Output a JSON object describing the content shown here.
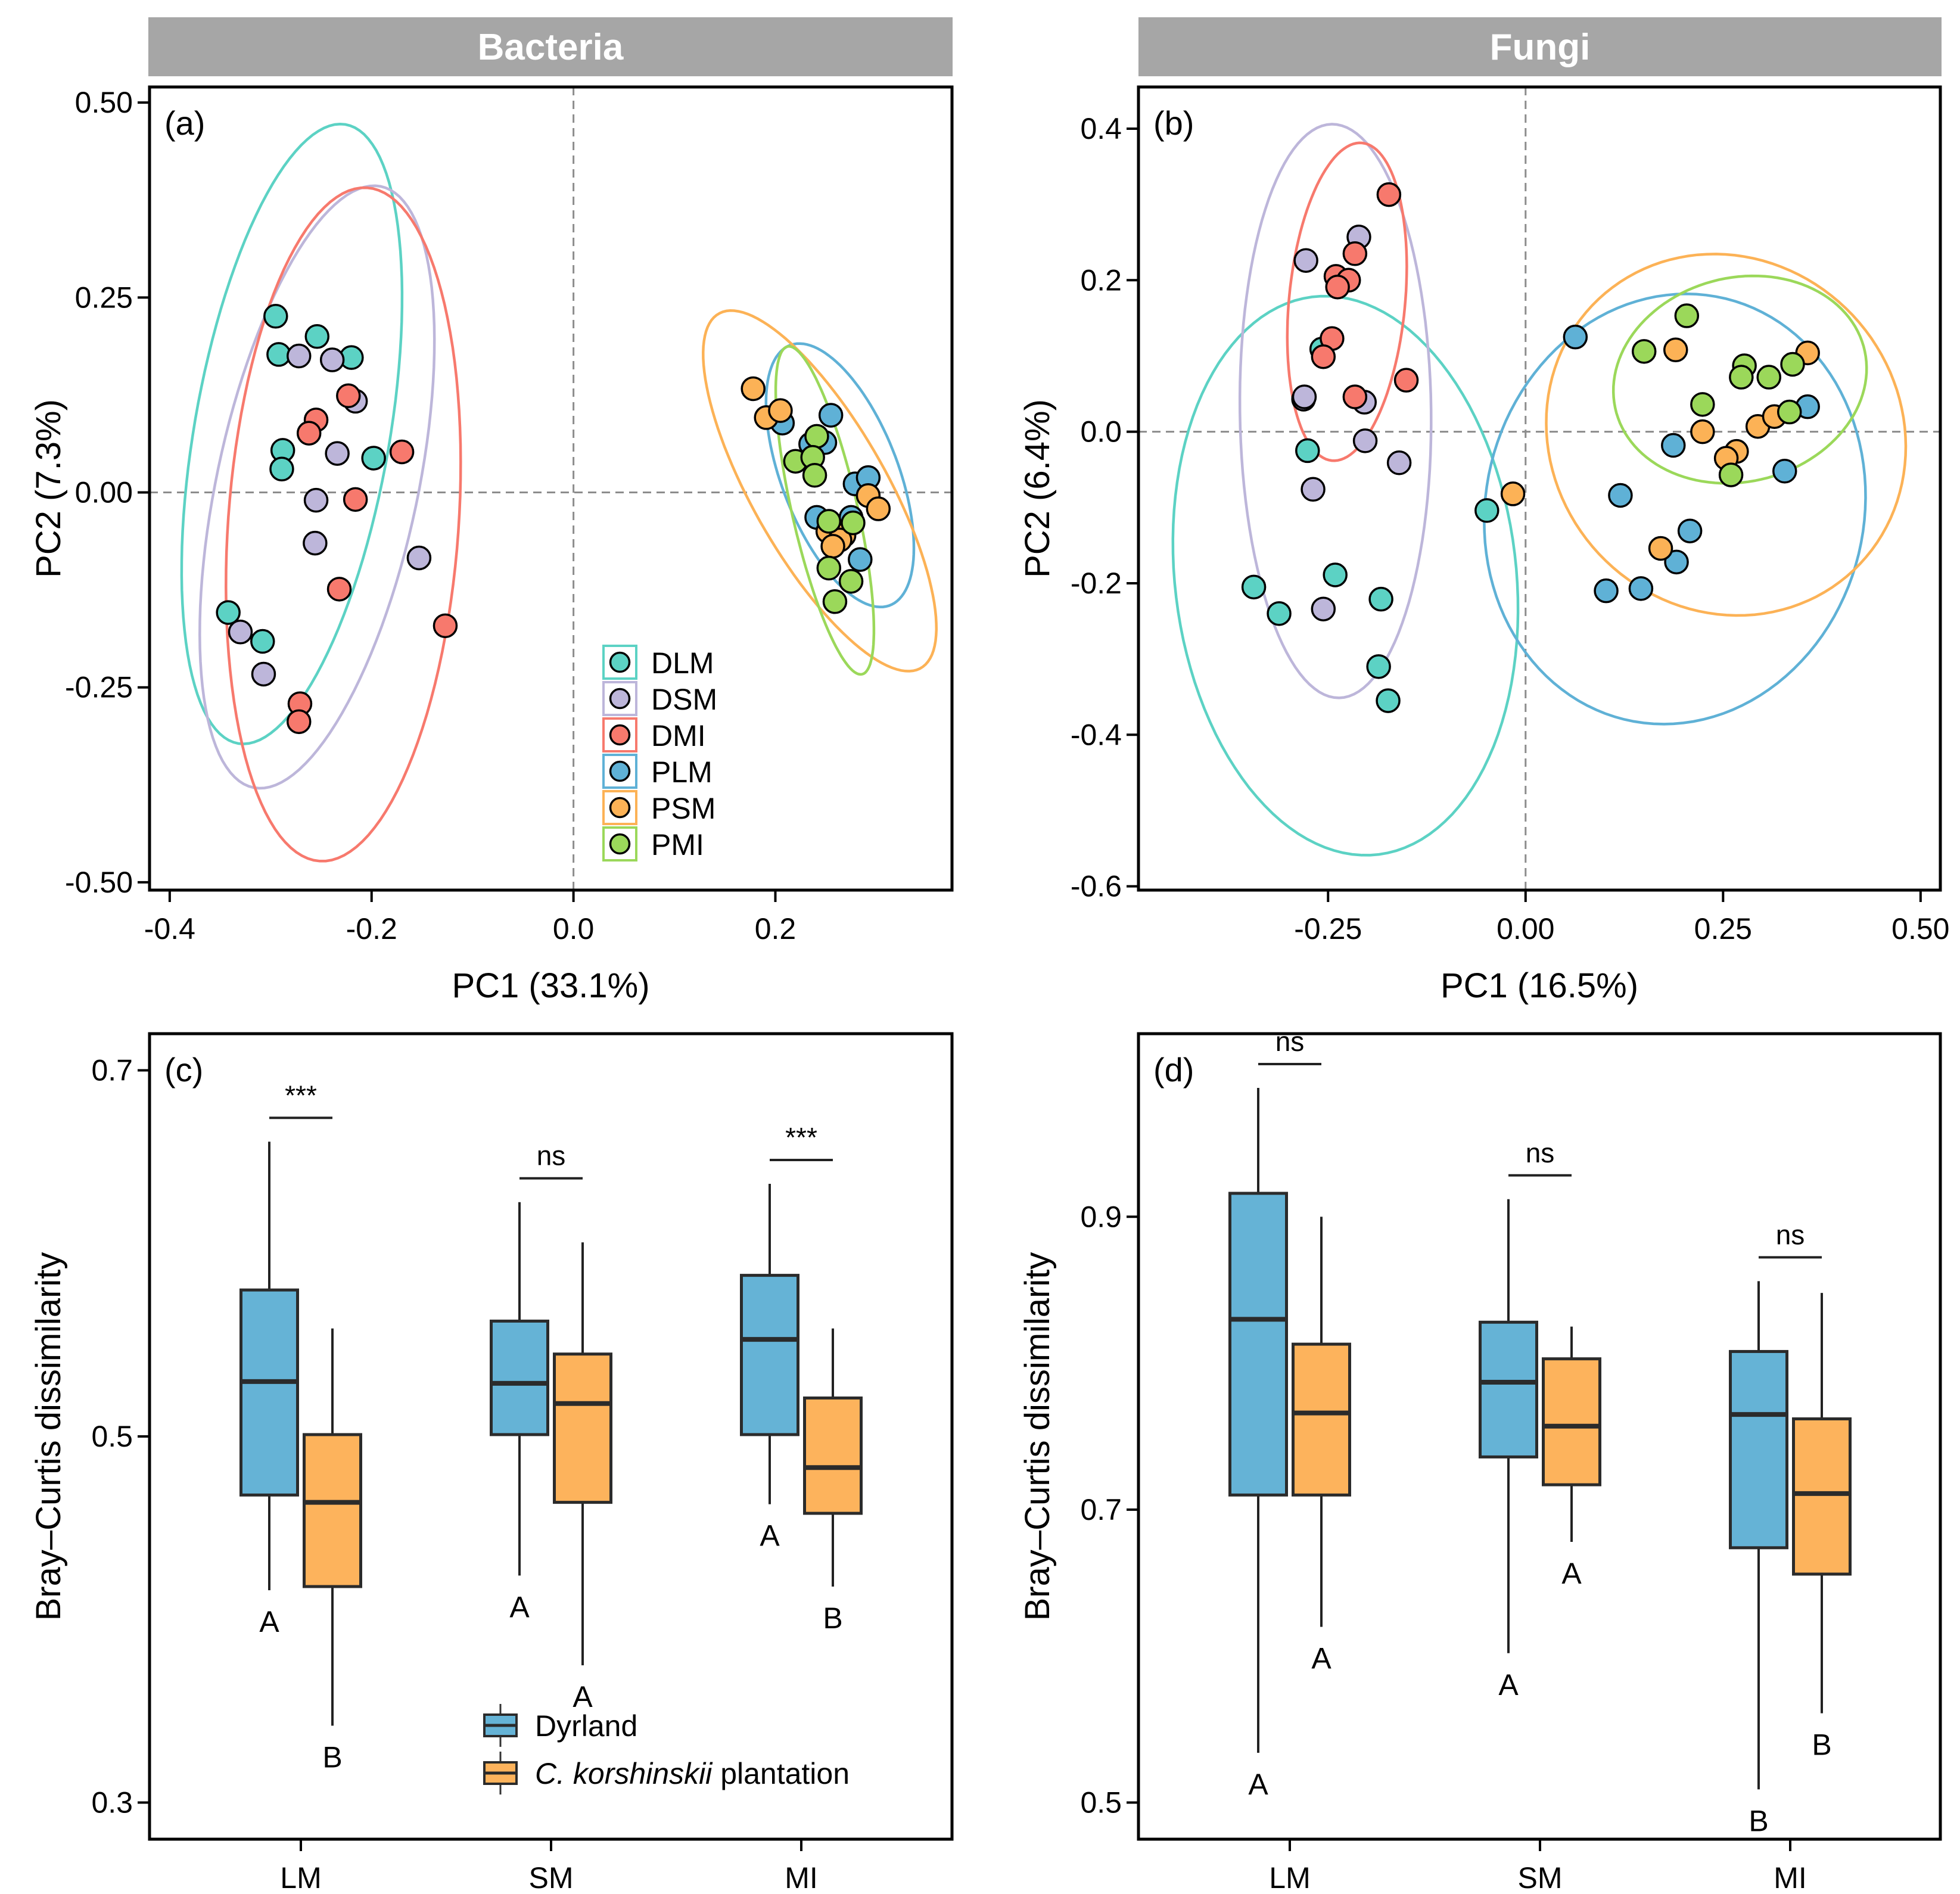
{
  "headers": {
    "left": "Bacteria",
    "right": "Fungi"
  },
  "colors": {
    "DLM": "#5cd2c4",
    "DSM": "#bdb6da",
    "DMI": "#f7796d",
    "PLM": "#5fb1d6",
    "PSM": "#fcb256",
    "PMI": "#9bd85a",
    "dryland_box": "#65b3d6",
    "plantation_box": "#fdb35c",
    "header_bg": "#a6a6a6"
  },
  "chart_data": [
    {
      "id": "a",
      "type": "scatter",
      "panel_label": "(a)",
      "header": "Bacteria",
      "xlabel": "PC1 (33.1%)",
      "ylabel": "PC2 (7.3%)",
      "xlim": [
        -0.42,
        0.375
      ],
      "ylim": [
        -0.51,
        0.52
      ],
      "xticks": [
        -0.4,
        -0.2,
        0.0,
        0.2
      ],
      "xtick_labels": [
        "-0.4",
        "-0.2",
        "0.0",
        "0.2"
      ],
      "yticks": [
        -0.5,
        -0.25,
        0.0,
        0.25,
        0.5
      ],
      "ytick_labels": [
        "-0.50",
        "-0.25",
        "0.00",
        "0.25",
        "0.50"
      ],
      "reference_lines": {
        "x": 0,
        "y": 0
      },
      "legend": {
        "placement": "bottom-right-center",
        "entries": [
          "DLM",
          "DSM",
          "DMI",
          "PLM",
          "PSM",
          "PMI"
        ]
      },
      "series": [
        {
          "name": "DLM",
          "points": [
            [
              -0.295,
              0.226
            ],
            [
              -0.292,
              0.177
            ],
            [
              -0.254,
              0.2
            ],
            [
              -0.22,
              0.173
            ],
            [
              -0.288,
              0.054
            ],
            [
              -0.289,
              0.03
            ],
            [
              -0.198,
              0.044
            ],
            [
              -0.342,
              -0.154
            ],
            [
              -0.308,
              -0.191
            ]
          ],
          "ellipse": {
            "center": [
              -0.279,
              0.075
            ],
            "u": [
              0.0528,
              0.397
            ],
            "v": [
              0.0956,
              -0.0193
            ]
          }
        },
        {
          "name": "DSM",
          "points": [
            [
              -0.272,
              0.175
            ],
            [
              -0.239,
              0.17
            ],
            [
              -0.216,
              0.117
            ],
            [
              -0.234,
              0.05
            ],
            [
              -0.255,
              -0.01
            ],
            [
              -0.256,
              -0.065
            ],
            [
              -0.153,
              -0.084
            ],
            [
              -0.33,
              -0.179
            ],
            [
              -0.307,
              -0.233
            ]
          ],
          "ellipse": {
            "center": [
              -0.254,
              0.007
            ],
            "u": [
              0.0627,
              0.3856
            ],
            "v": [
              0.0979,
              -0.0242
            ]
          }
        },
        {
          "name": "DMI",
          "points": [
            [
              -0.223,
              0.124
            ],
            [
              -0.255,
              0.093
            ],
            [
              -0.262,
              0.076
            ],
            [
              -0.17,
              0.052
            ],
            [
              -0.216,
              -0.009
            ],
            [
              -0.232,
              -0.124
            ],
            [
              -0.127,
              -0.171
            ],
            [
              -0.271,
              -0.271
            ],
            [
              -0.272,
              -0.294
            ]
          ],
          "ellipse": {
            "center": [
              -0.228,
              -0.041
            ],
            "u": [
              0.0234,
              0.4318
            ],
            "v": [
              0.1139,
              -0.0094
            ]
          }
        },
        {
          "name": "PLM",
          "points": [
            [
              0.207,
              0.089
            ],
            [
              0.255,
              0.099
            ],
            [
              0.235,
              0.062
            ],
            [
              0.249,
              0.064
            ],
            [
              0.279,
              0.011
            ],
            [
              0.292,
              0.019
            ],
            [
              0.241,
              -0.032
            ],
            [
              0.275,
              -0.032
            ],
            [
              0.284,
              -0.086
            ]
          ],
          "ellipse": {
            "center": [
              0.264,
              0.022
            ],
            "u": [
              -0.0486,
              0.1672
            ],
            "v": [
              0.0548,
              0.0242
            ]
          }
        },
        {
          "name": "PSM",
          "points": [
            [
              0.178,
              0.133
            ],
            [
              0.191,
              0.096
            ],
            [
              0.205,
              0.105
            ],
            [
              0.292,
              -0.004
            ],
            [
              0.302,
              -0.021
            ],
            [
              0.252,
              -0.05
            ],
            [
              0.268,
              -0.055
            ],
            [
              0.264,
              -0.061
            ],
            [
              0.257,
              -0.069
            ]
          ],
          "ellipse": {
            "center": [
              0.244,
              0.002
            ],
            "u": [
              -0.0992,
              0.2279
            ],
            "v": [
              0.0592,
              0.0391
            ]
          }
        },
        {
          "name": "PMI",
          "points": [
            [
              0.241,
              0.072
            ],
            [
              0.22,
              0.04
            ],
            [
              0.237,
              0.045
            ],
            [
              0.239,
              0.022
            ],
            [
              0.253,
              -0.037
            ],
            [
              0.277,
              -0.039
            ],
            [
              0.253,
              -0.097
            ],
            [
              0.275,
              -0.114
            ],
            [
              0.259,
              -0.14
            ]
          ],
          "ellipse": {
            "center": [
              0.249,
              -0.023
            ],
            "u": [
              -0.0368,
              0.2102
            ],
            "v": [
              0.0318,
              0.0084
            ]
          }
        }
      ]
    },
    {
      "id": "b",
      "type": "scatter",
      "panel_label": "(b)",
      "header": "Fungi",
      "xlabel": "PC1 (16.5%)",
      "ylabel": "PC2 (6.4%)",
      "xlim": [
        -0.49,
        0.525
      ],
      "ylim": [
        -0.605,
        0.455
      ],
      "xticks": [
        -0.25,
        0.0,
        0.25,
        0.5
      ],
      "xtick_labels": [
        "-0.25",
        "0.00",
        "0.25",
        "0.50"
      ],
      "yticks": [
        -0.6,
        -0.4,
        -0.2,
        0.0,
        0.2,
        0.4
      ],
      "ytick_labels": [
        "-0.6",
        "-0.4",
        "-0.2",
        "0.0",
        "0.2",
        "0.4"
      ],
      "reference_lines": {
        "x": 0,
        "y": 0
      },
      "series": [
        {
          "name": "DLM",
          "points": [
            [
              -0.258,
              0.109
            ],
            [
              -0.276,
              -0.025
            ],
            [
              -0.049,
              -0.104
            ],
            [
              -0.344,
              -0.205
            ],
            [
              -0.312,
              -0.24
            ],
            [
              -0.241,
              -0.189
            ],
            [
              -0.183,
              -0.221
            ],
            [
              -0.186,
              -0.31
            ],
            [
              -0.174,
              -0.355
            ]
          ],
          "ellipse": {
            "center": [
              -0.228,
              -0.19
            ],
            "u": [
              -0.0424,
              0.3679
            ],
            "v": [
              0.2143,
              0.0285
            ]
          }
        },
        {
          "name": "DSM",
          "points": [
            [
              -0.211,
              0.257
            ],
            [
              -0.278,
              0.226
            ],
            [
              -0.281,
              0.043
            ],
            [
              -0.28,
              0.046
            ],
            [
              -0.204,
              0.039
            ],
            [
              -0.203,
              -0.012
            ],
            [
              -0.16,
              -0.041
            ],
            [
              -0.269,
              -0.076
            ],
            [
              -0.256,
              -0.234
            ]
          ],
          "ellipse": {
            "center": [
              -0.2406,
              0.0273
            ],
            "u": [
              -0.0046,
              0.3786
            ],
            "v": [
              0.121,
              0.0017
            ]
          }
        },
        {
          "name": "DMI",
          "points": [
            [
              -0.173,
              0.313
            ],
            [
              -0.216,
              0.235
            ],
            [
              -0.24,
              0.205
            ],
            [
              -0.224,
              0.2
            ],
            [
              -0.238,
              0.191
            ],
            [
              -0.245,
              0.123
            ],
            [
              -0.256,
              0.099
            ],
            [
              -0.216,
              0.046
            ],
            [
              -0.151,
              0.068
            ]
          ],
          "ellipse": {
            "center": [
              -0.226,
              0.1715
            ],
            "u": [
              0.0193,
              0.2096
            ],
            "v": [
              0.0731,
              -0.0078
            ]
          }
        },
        {
          "name": "PLM",
          "points": [
            [
              0.063,
              0.125
            ],
            [
              0.187,
              -0.018
            ],
            [
              0.12,
              -0.084
            ],
            [
              0.208,
              -0.131
            ],
            [
              0.191,
              -0.172
            ],
            [
              0.102,
              -0.21
            ],
            [
              0.146,
              -0.207
            ],
            [
              0.357,
              0.033
            ],
            [
              0.328,
              -0.052
            ]
          ],
          "ellipse": {
            "center": [
              0.189,
              -0.102
            ],
            "u": [
              0.0763,
              0.2742
            ],
            "v": [
              0.229,
              -0.0736
            ]
          }
        },
        {
          "name": "PSM",
          "points": [
            [
              -0.016,
              -0.082
            ],
            [
              0.19,
              0.108
            ],
            [
              0.357,
              0.104
            ],
            [
              0.294,
              0.007
            ],
            [
              0.315,
              0.02
            ],
            [
              0.224,
              0.0
            ],
            [
              0.267,
              -0.026
            ],
            [
              0.254,
              -0.035
            ],
            [
              0.171,
              -0.154
            ]
          ],
          "ellipse": {
            "center": [
              0.2537,
              -0.004
            ],
            "u": [
              0.1234,
              0.1914
            ],
            "v": [
              0.1912,
              -0.1423
            ]
          }
        },
        {
          "name": "PMI",
          "points": [
            [
              0.204,
              0.153
            ],
            [
              0.15,
              0.106
            ],
            [
              0.277,
              0.087
            ],
            [
              0.273,
              0.072
            ],
            [
              0.308,
              0.072
            ],
            [
              0.338,
              0.089
            ],
            [
              0.224,
              0.036
            ],
            [
              0.334,
              0.026
            ],
            [
              0.26,
              -0.057
            ]
          ],
          "ellipse": {
            "center": [
              0.2714,
              0.0688
            ],
            "u": [
              0.158,
              0.0373
            ],
            "v": [
              0.0269,
              -0.1317
            ]
          }
        }
      ]
    },
    {
      "id": "c",
      "type": "box",
      "panel_label": "(c)",
      "ylabel": "Bray–Curtis dissimilarity",
      "categories": [
        "LM",
        "SM",
        "MI"
      ],
      "ylim": [
        0.28,
        0.72
      ],
      "yticks": [
        0.3,
        0.5,
        0.7
      ],
      "ytick_labels": [
        "0.3",
        "0.5",
        "0.7"
      ],
      "legend": {
        "placement": "bottom-center",
        "entries": [
          {
            "name": "Dyrland",
            "italic_part": "",
            "rest": "Dyrland"
          },
          {
            "name": "C. korshinskii plantation",
            "italic_part": "C. korshinskii",
            "rest": " plantation"
          }
        ]
      },
      "series": [
        {
          "name": "Dyrland",
          "boxes": [
            {
              "min": 0.416,
              "q1": 0.468,
              "median": 0.53,
              "q3": 0.58,
              "max": 0.661,
              "letter": "A"
            },
            {
              "min": 0.424,
              "q1": 0.501,
              "median": 0.529,
              "q3": 0.563,
              "max": 0.628,
              "letter": "A"
            },
            {
              "min": 0.463,
              "q1": 0.501,
              "median": 0.553,
              "q3": 0.588,
              "max": 0.638,
              "letter": "A"
            }
          ]
        },
        {
          "name": "C. korshinskii plantation",
          "boxes": [
            {
              "min": 0.342,
              "q1": 0.418,
              "median": 0.464,
              "q3": 0.501,
              "max": 0.559,
              "letter": "B"
            },
            {
              "min": 0.375,
              "q1": 0.464,
              "median": 0.518,
              "q3": 0.545,
              "max": 0.606,
              "letter": "A"
            },
            {
              "min": 0.418,
              "q1": 0.458,
              "median": 0.483,
              "q3": 0.521,
              "max": 0.559,
              "letter": "B"
            }
          ]
        }
      ],
      "significance": [
        "***",
        "ns",
        "***"
      ]
    },
    {
      "id": "d",
      "type": "box",
      "panel_label": "(d)",
      "ylabel": "Bray–Curtis dissimilarity",
      "categories": [
        "LM",
        "SM",
        "MI"
      ],
      "ylim": [
        0.475,
        1.025
      ],
      "yticks": [
        0.5,
        0.7,
        0.9
      ],
      "ytick_labels": [
        "0.5",
        "0.7",
        "0.9"
      ],
      "series": [
        {
          "name": "Dyrland",
          "boxes": [
            {
              "min": 0.534,
              "q1": 0.71,
              "median": 0.83,
              "q3": 0.916,
              "max": 0.988,
              "letter": "A"
            },
            {
              "min": 0.602,
              "q1": 0.736,
              "median": 0.787,
              "q3": 0.828,
              "max": 0.912,
              "letter": "A"
            },
            {
              "min": 0.509,
              "q1": 0.674,
              "median": 0.765,
              "q3": 0.808,
              "max": 0.856,
              "letter": "B"
            }
          ]
        },
        {
          "name": "C. korshinskii plantation",
          "boxes": [
            {
              "min": 0.62,
              "q1": 0.71,
              "median": 0.766,
              "q3": 0.813,
              "max": 0.9,
              "letter": "A"
            },
            {
              "min": 0.678,
              "q1": 0.717,
              "median": 0.757,
              "q3": 0.803,
              "max": 0.825,
              "letter": "A"
            },
            {
              "min": 0.561,
              "q1": 0.656,
              "median": 0.711,
              "q3": 0.762,
              "max": 0.848,
              "letter": "B"
            }
          ]
        }
      ],
      "significance": [
        "ns",
        "ns",
        "ns"
      ]
    }
  ]
}
